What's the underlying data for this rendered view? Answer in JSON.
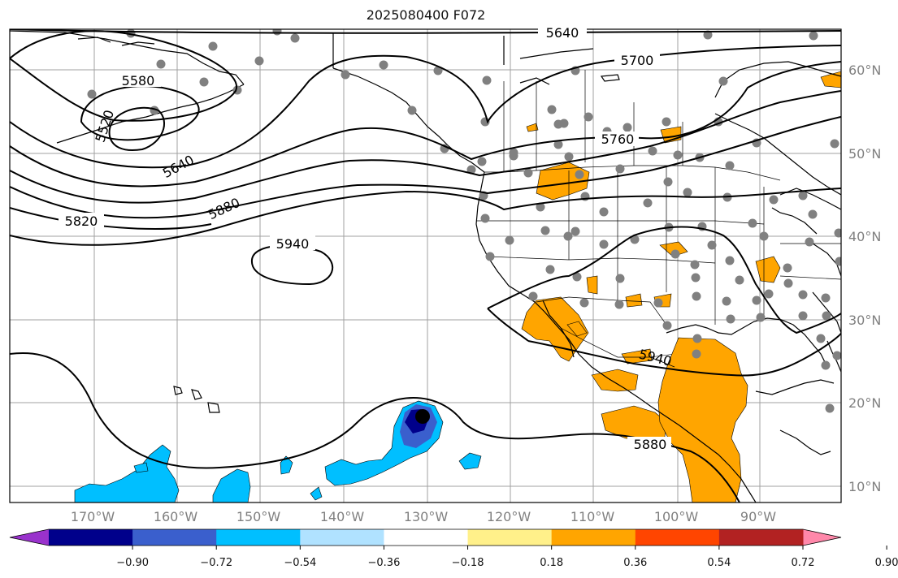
{
  "title": "2025080400 F072",
  "map": {
    "lat_ticks": [
      "60°N",
      "50°N",
      "40°N",
      "30°N",
      "20°N",
      "10°N"
    ],
    "lon_ticks": [
      "170°W",
      "160°W",
      "150°W",
      "140°W",
      "130°W",
      "120°W",
      "110°W",
      "100°W",
      "90°W"
    ],
    "contour_labels": [
      "5640",
      "5700",
      "5580",
      "5520",
      "5760",
      "5640",
      "5820",
      "5880",
      "5940",
      "5940",
      "5880"
    ],
    "colors": {
      "contour": "#000000",
      "coast": "#000000",
      "grid": "#a0a0a0",
      "station_dot": "#808080",
      "positive_anomaly": "#ffa500",
      "negative_light": "#00bfff",
      "negative_mid": "#3a5fcd",
      "negative_strong": "#00008b"
    }
  },
  "colorbar": {
    "ticks": [
      "−0.90",
      "−0.72",
      "−0.54",
      "−0.36",
      "−0.18",
      "0.18",
      "0.36",
      "0.54",
      "0.72",
      "0.90"
    ],
    "colors": [
      "#9932cc",
      "#00008b",
      "#3a5fcd",
      "#00bfff",
      "#b0e2ff",
      "#ffffff",
      "#fff08a",
      "#ffa500",
      "#ff4500",
      "#b22222",
      "#ff88aa"
    ]
  }
}
